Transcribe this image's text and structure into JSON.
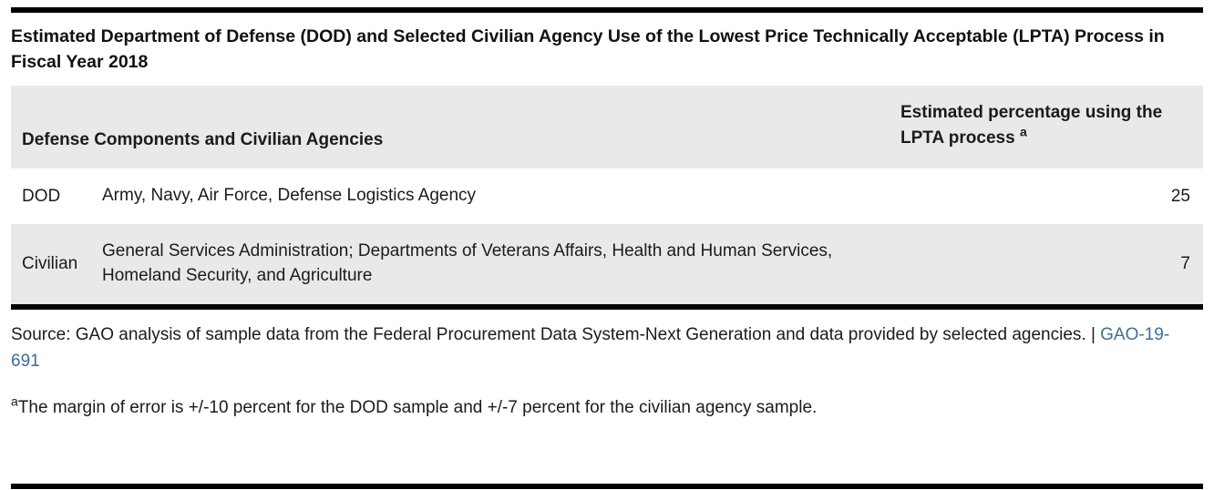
{
  "title": "Estimated Department of Defense (DOD) and Selected Civilian Agency Use of the Lowest Price Technically Acceptable (LPTA) Process in Fiscal Year 2018",
  "table": {
    "col1_header": "Defense Components and Civilian Agencies",
    "col2_header": "Estimated percentage using the LPTA process",
    "col2_footnote_marker": "a",
    "rows": [
      {
        "category": "DOD",
        "description": "Army, Navy, Air Force, Defense Logistics Agency",
        "value": "25"
      },
      {
        "category": "Civilian",
        "description": "General Services Administration; Departments of Veterans Affairs, Health and Human Services, Homeland Security, and Agriculture",
        "value": "7"
      }
    ]
  },
  "source": {
    "prefix": "Source: GAO analysis of sample data from the Federal Procurement Data System-Next Generation and data provided by selected agencies. | ",
    "link_label": "GAO-19-691"
  },
  "footnote": {
    "marker": "a",
    "text": "The margin of error is +/-10 percent for the DOD sample and +/-7 percent for the civilian agency sample."
  },
  "colors": {
    "header_band": "#e9e9e9",
    "row_alt": "#e9e9e9",
    "rule": "#000000",
    "link": "#3c6e9c"
  },
  "chart_data": {
    "type": "table",
    "title": "Estimated Department of Defense (DOD) and Selected Civilian Agency Use of the Lowest Price Technically Acceptable (LPTA) Process in Fiscal Year 2018",
    "columns": [
      "Defense Components and Civilian Agencies",
      "Estimated percentage using the LPTA process"
    ],
    "rows": [
      [
        "DOD",
        "Army, Navy, Air Force, Defense Logistics Agency",
        25
      ],
      [
        "Civilian",
        "General Services Administration; Departments of Veterans Affairs, Health and Human Services, Homeland Security, and Agriculture",
        7
      ]
    ],
    "footnote": "The margin of error is +/-10 percent for the DOD sample and +/-7 percent for the civilian agency sample.",
    "source": "GAO analysis of sample data from the Federal Procurement Data System-Next Generation and data provided by selected agencies. | GAO-19-691"
  }
}
